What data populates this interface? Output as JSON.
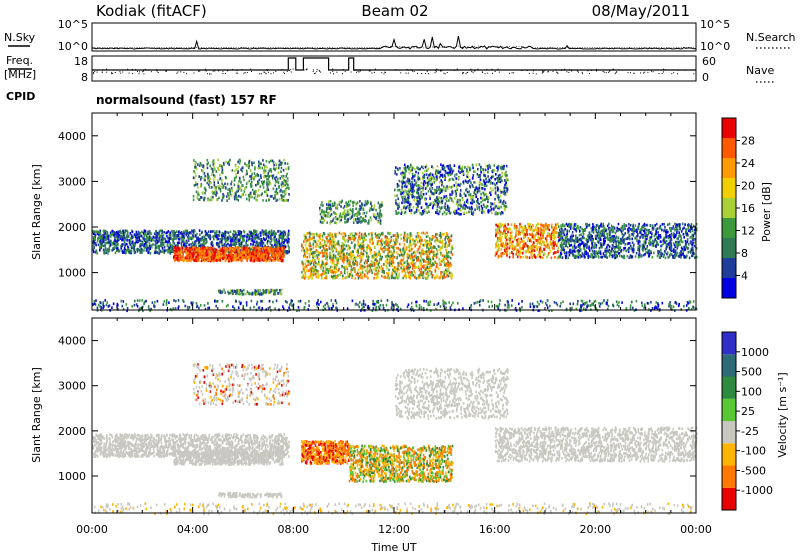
{
  "header": {
    "station": "Kodiak (fitACF)",
    "beam": "Beam 02",
    "date": "08/May/2011"
  },
  "top_panels": {
    "nsky_label": "N.Sky",
    "nsearch_label": "N.Search",
    "freq_label_line1": "Freq.",
    "freq_label_line2": "[MHz]",
    "nave_label": "Nave",
    "cpid_label": "CPID",
    "cpid_value": "normalsound (fast) 157 RF",
    "nsky_ticks": [
      "10^5",
      "10^0"
    ],
    "nsearch_ticks": [
      "10^5",
      "10^0"
    ],
    "freq_ticks": [
      "18",
      "8"
    ],
    "nave_ticks": [
      "60",
      "0"
    ]
  },
  "colors": {
    "power_scale": [
      "#0000e0",
      "#1e3c9a",
      "#2f7a55",
      "#3c9a3c",
      "#a8d038",
      "#f0d000",
      "#ff9a00",
      "#ff5a00",
      "#e80000"
    ],
    "velocity_scale": [
      "#3030c8",
      "#2e6a78",
      "#2e8a3e",
      "#5ac832",
      "#c8c8c0",
      "#ffb400",
      "#ff7800",
      "#e80000"
    ]
  },
  "chart_data": [
    {
      "type": "line",
      "name": "N.Sky / N.Search",
      "x": [
        "00:00",
        "04:00",
        "08:00",
        "12:00",
        "16:00",
        "20:00",
        "00:00"
      ],
      "ylim_log10": [
        0,
        5
      ],
      "tick_labels": [
        "10^0",
        "10^5"
      ]
    },
    {
      "type": "line",
      "name": "Freq / Nave",
      "freq_ticks": [
        8,
        18
      ],
      "nave_ticks": [
        0,
        60
      ],
      "freq_step_segments_hours": [
        [
          7.8,
          8.1
        ],
        [
          8.4,
          9.4
        ],
        [
          10.2,
          10.4
        ]
      ]
    },
    {
      "type": "heatmap",
      "xlabel": "",
      "ylabel": "Slant Range [km]",
      "x_ticks": [
        "00:00",
        "04:00",
        "08:00",
        "12:00",
        "16:00",
        "20:00",
        "00:00"
      ],
      "xlim_hours": [
        0,
        24
      ],
      "ylim": [
        180,
        4500
      ],
      "y_ticks": [
        1000,
        2000,
        3000,
        4000
      ],
      "colorbar_label": "Power [dB]",
      "colorbar_ticks": [
        "4",
        "8",
        "12",
        "16",
        "20",
        "24",
        "28"
      ]
    },
    {
      "type": "heatmap",
      "xlabel": "Time UT",
      "ylabel": "Slant Range [km]",
      "x_ticks": [
        "00:00",
        "04:00",
        "08:00",
        "12:00",
        "16:00",
        "20:00",
        "00:00"
      ],
      "xlim_hours": [
        0,
        24
      ],
      "ylim": [
        180,
        4500
      ],
      "y_ticks": [
        1000,
        2000,
        3000,
        4000
      ],
      "colorbar_label": "Velocity [m s⁻¹]",
      "colorbar_ticks": [
        "1000",
        "500",
        "100",
        "25",
        "-25",
        "-100",
        "-500",
        "-1000"
      ]
    }
  ]
}
